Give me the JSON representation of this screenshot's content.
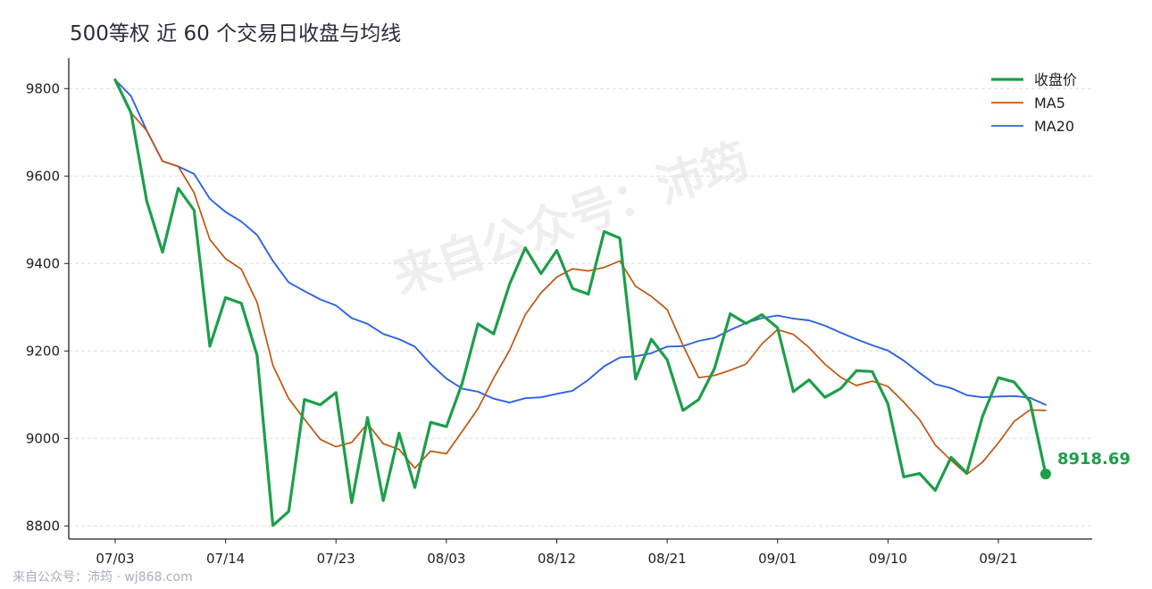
{
  "title": "500等权 近 60 个交易日收盘与均线",
  "footer": "来自公众号：沛筠 · wj868.com",
  "watermark": "来自公众号：沛筠",
  "colors": {
    "close": "#1e9e4a",
    "ma5": "#c0560f",
    "ma20": "#2f63e0",
    "axis": "#222222",
    "grid": "#dddddd"
  },
  "chart_data": {
    "type": "line",
    "title": "500等权 近 60 个交易日收盘与均线",
    "xlabel": "",
    "ylabel": "",
    "ylim": [
      8770,
      9870
    ],
    "yticks": [
      8800,
      9000,
      9200,
      9400,
      9600,
      9800
    ],
    "grid": "horizontal dashed",
    "legend_position": "top-right",
    "xtick_labels": [
      {
        "index": 0,
        "label": "07/03"
      },
      {
        "index": 7,
        "label": "07/14"
      },
      {
        "index": 14,
        "label": "07/23"
      },
      {
        "index": 21,
        "label": "08/03"
      },
      {
        "index": 28,
        "label": "08/12"
      },
      {
        "index": 35,
        "label": "08/21"
      },
      {
        "index": 42,
        "label": "09/01"
      },
      {
        "index": 49,
        "label": "09/10"
      },
      {
        "index": 56,
        "label": "09/21"
      }
    ],
    "last_value_label": "8918.69",
    "series": [
      {
        "name": "收盘价",
        "values": [
          9820,
          9745,
          9543,
          9426,
          9572,
          9522,
          9211,
          9322,
          9309,
          9190,
          8801,
          8833,
          9089,
          9077,
          9105,
          8853,
          9048,
          8858,
          9012,
          8888,
          9037,
          9027,
          9126,
          9262,
          9239,
          9352,
          9436,
          9377,
          9430,
          9343,
          9330,
          9473,
          9458,
          9136,
          9227,
          9180,
          9064,
          9089,
          9160,
          9285,
          9263,
          9283,
          9253,
          9107,
          9134,
          9094,
          9114,
          9155,
          9153,
          9079,
          8912,
          8920,
          8881,
          8957,
          8921,
          9051,
          9139,
          9129,
          9085,
          8918.69
        ]
      },
      {
        "name": "MA5",
        "values": [
          9820,
          9745,
          9704,
          9634,
          9622,
          9562,
          9455,
          9411,
          9387,
          9311,
          9167,
          9091,
          9044,
          8998,
          8981,
          8991,
          9034,
          8988,
          8975,
          8932,
          8971,
          8965,
          9016,
          9068,
          9138,
          9201,
          9283,
          9333,
          9369,
          9388,
          9383,
          9391,
          9406,
          9348,
          9325,
          9295,
          9213,
          9139,
          9144,
          9156,
          9170,
          9216,
          9249,
          9238,
          9208,
          9170,
          9140,
          9121,
          9131,
          9119,
          9083,
          9043,
          8985,
          8950,
          8918,
          8946,
          8990,
          9039,
          9065,
          9064
        ]
      },
      {
        "name": "MA20",
        "values": [
          9820,
          9783,
          9704,
          9634,
          9622,
          9605,
          9548,
          9518,
          9496,
          9465,
          9406,
          9357,
          9337,
          9318,
          9304,
          9275,
          9262,
          9239,
          9227,
          9210,
          9170,
          9137,
          9114,
          9107,
          9091,
          9082,
          9092,
          9094,
          9102,
          9109,
          9134,
          9165,
          9185,
          9188,
          9195,
          9210,
          9211,
          9223,
          9230,
          9248,
          9264,
          9275,
          9281,
          9274,
          9270,
          9258,
          9242,
          9227,
          9213,
          9201,
          9178,
          9150,
          9124,
          9115,
          9099,
          9094,
          9096,
          9097,
          9093,
          9077
        ]
      }
    ]
  }
}
